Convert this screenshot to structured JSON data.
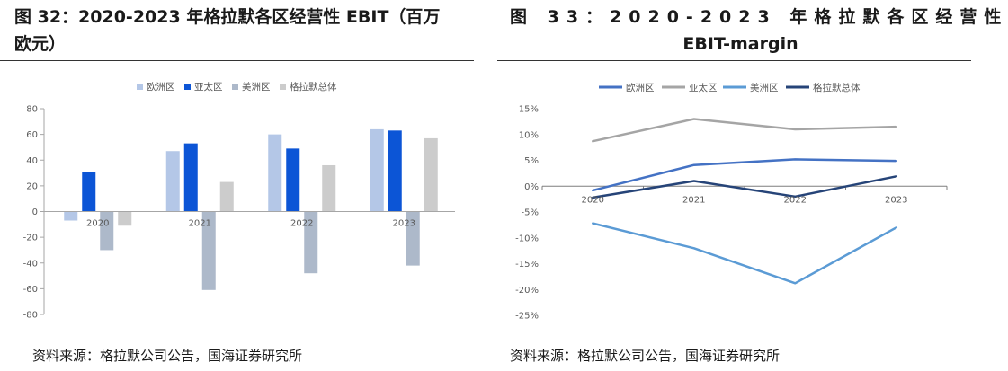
{
  "left": {
    "title_line1": "图 32：2020-2023 年格拉默各区经营性 EBIT（百万",
    "title_line2": "欧元）",
    "source": "资料来源：格拉默公司公告，国海证券研究所"
  },
  "right": {
    "title_line1": "图 33：2020-2023 年格拉默各区经营性",
    "title_line2": "EBIT-margin",
    "source": "资料来源：格拉默公司公告，国海证券研究所"
  },
  "chart_data": [
    {
      "type": "bar",
      "categories": [
        "2020",
        "2021",
        "2022",
        "2023"
      ],
      "series": [
        {
          "name": "欧洲区",
          "values": [
            -7,
            47,
            60,
            64
          ],
          "color": "#b4c7e7"
        },
        {
          "name": "亚太区",
          "values": [
            31,
            53,
            49,
            63
          ],
          "color": "#0c55d6"
        },
        {
          "name": "美洲区",
          "values": [
            -30,
            -61,
            -48,
            -42
          ],
          "color": "#adb9ca"
        },
        {
          "name": "格拉默总体",
          "values": [
            -11,
            23,
            36,
            57
          ],
          "color": "#cccccc"
        }
      ],
      "ylim": [
        -80,
        80
      ],
      "yticks": [
        "80",
        "60",
        "40",
        "20",
        "0",
        "-20",
        "-40",
        "-60",
        "-80"
      ],
      "legend": "top",
      "grid": false
    },
    {
      "type": "line",
      "categories": [
        "2020",
        "2021",
        "2022",
        "2023"
      ],
      "series": [
        {
          "name": "欧洲区",
          "values": [
            -0.8,
            4.1,
            5.2,
            4.9
          ],
          "color": "#4472c4"
        },
        {
          "name": "亚太区",
          "values": [
            8.7,
            13.0,
            11.0,
            11.5
          ],
          "color": "#a5a5a5"
        },
        {
          "name": "美洲区",
          "values": [
            -7.2,
            -12.0,
            -18.8,
            -8.0
          ],
          "color": "#5b9bd5"
        },
        {
          "name": "格拉默总体",
          "values": [
            -2.2,
            1.0,
            -2.0,
            1.9
          ],
          "color": "#264478"
        }
      ],
      "ylim": [
        -25,
        15
      ],
      "yticks": [
        "15%",
        "10%",
        "5%",
        "0%",
        "-5%",
        "-10%",
        "-15%",
        "-20%",
        "-25%"
      ],
      "legend": "top",
      "grid": false
    }
  ]
}
